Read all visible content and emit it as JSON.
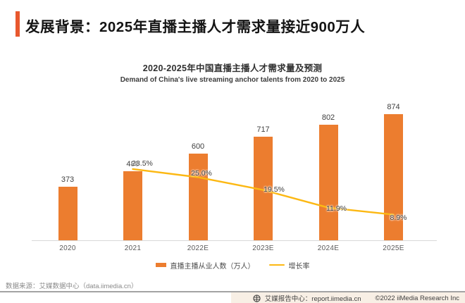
{
  "header": {
    "title": "发展背景：2025年直播主播人才需求量接近900万人",
    "accent_color": "#e8582e"
  },
  "chart_data": {
    "type": "bar",
    "combo": "bar+line",
    "title": "2020-2025年中国直播主播人才需求量及预测",
    "subtitle": "Demand of China's live streaming anchor talents from 2020 to 2025",
    "categories": [
      "2020",
      "2021",
      "2022E",
      "2023E",
      "2024E",
      "2025E"
    ],
    "series": [
      {
        "name": "直播主播从业人数（万人）",
        "type": "bar",
        "color": "#ec7d2f",
        "values": [
          373,
          480,
          600,
          717,
          802,
          874
        ]
      },
      {
        "name": "增长率",
        "type": "line",
        "color": "#fcb813",
        "values": [
          null,
          28.5,
          25.0,
          19.5,
          11.9,
          8.9
        ],
        "labels": [
          null,
          "28.5%",
          "25.0%",
          "19.5%",
          "11.9%",
          "8.9%"
        ]
      }
    ],
    "bar_axis_range": [
      0,
      900
    ],
    "line_axis_range": [
      0,
      30
    ],
    "value_axes_visible": false,
    "grid": false,
    "legend_position": "bottom",
    "data_labels": true
  },
  "footer": {
    "source": "数据来源：艾媒数据中心（data.iimedia.cn）",
    "report_center": "艾媒报告中心：report.iimedia.cn",
    "copyright": "©2022 iiMedia Research Inc",
    "logo_icon": "iimedia-logo"
  }
}
